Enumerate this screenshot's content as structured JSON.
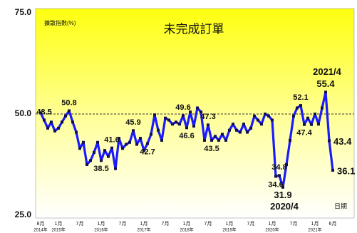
{
  "chart_data": {
    "type": "line",
    "title": "未完成訂單",
    "y_axis_label": "擴散指數(%)",
    "x_axis_label": "日期",
    "categories": [
      "8月",
      null,
      null,
      null,
      null,
      "1月",
      null,
      null,
      null,
      null,
      null,
      "7月",
      null,
      null,
      null,
      null,
      null,
      "1月",
      null,
      null,
      null,
      null,
      null,
      "7月",
      null,
      null,
      null,
      null,
      null,
      "1月",
      null,
      null,
      null,
      null,
      null,
      "7月",
      null,
      null,
      null,
      null,
      null,
      "1月",
      null,
      null,
      null,
      null,
      null,
      "7月",
      null,
      null,
      null,
      null,
      null,
      "1月",
      null,
      null,
      null,
      null,
      null,
      "7月",
      null,
      null,
      null,
      null,
      null,
      "1月",
      null,
      null,
      null,
      null,
      null,
      "7月",
      null,
      null,
      null,
      null,
      null,
      "1月",
      null,
      null,
      null,
      null,
      "6月"
    ],
    "years": [
      "2014年",
      null,
      null,
      null,
      null,
      "2015年",
      null,
      null,
      null,
      null,
      null,
      null,
      null,
      null,
      null,
      null,
      null,
      "2016年",
      null,
      null,
      null,
      null,
      null,
      null,
      null,
      null,
      null,
      null,
      null,
      "2017年",
      null,
      null,
      null,
      null,
      null,
      null,
      null,
      null,
      null,
      null,
      null,
      "2018年",
      null,
      null,
      null,
      null,
      null,
      null,
      null,
      null,
      null,
      null,
      null,
      "2019年",
      null,
      null,
      null,
      null,
      null,
      null,
      null,
      null,
      null,
      null,
      null,
      "2020年",
      null,
      null,
      null,
      null,
      null,
      null,
      null,
      null,
      null,
      null,
      null,
      "2021年",
      null,
      null,
      null,
      null,
      null
    ],
    "series": [
      {
        "name": "未完成訂單",
        "color": "#1a1aff",
        "values": [
          50.3,
          48.5,
          46.5,
          48.0,
          45.8,
          46.5,
          48.0,
          49.5,
          50.8,
          48.0,
          45.5,
          41.5,
          43.0,
          37.5,
          38.5,
          40.5,
          43.0,
          38.5,
          41.0,
          39.5,
          41.6,
          36.5,
          44.0,
          41.5,
          42.5,
          43.0,
          45.9,
          42.5,
          44.0,
          41.0,
          42.7,
          45.0,
          49.8,
          46.0,
          43.5,
          49.0,
          48.5,
          47.5,
          48.0,
          47.5,
          49.6,
          46.6,
          50.5,
          47.0,
          51.5,
          50.5,
          43.5,
          47.3,
          43.5,
          44.5,
          43.5,
          45.0,
          43.5,
          46.0,
          47.5,
          46.0,
          45.5,
          47.5,
          45.5,
          46.5,
          49.5,
          48.5,
          47.5,
          50.0,
          49.5,
          48.5,
          34.6,
          34.8,
          31.9,
          37.5,
          43.5,
          49.5,
          51.5,
          52.1,
          47.4,
          49.0,
          47.4,
          50.0,
          47.5,
          51.5,
          55.4,
          43.4,
          36.1
        ],
        "value_labels": [
          null,
          "48.5",
          null,
          null,
          null,
          null,
          null,
          null,
          "50.8",
          null,
          null,
          null,
          null,
          null,
          null,
          null,
          null,
          "38.5",
          null,
          null,
          "41.6",
          null,
          null,
          null,
          null,
          null,
          "45.9",
          null,
          null,
          null,
          "42.7",
          null,
          null,
          null,
          null,
          null,
          null,
          null,
          null,
          null,
          "49.6",
          "46.6",
          null,
          null,
          null,
          null,
          null,
          "47.3",
          "43.5",
          null,
          null,
          null,
          null,
          null,
          null,
          null,
          null,
          null,
          null,
          null,
          null,
          null,
          null,
          null,
          null,
          null,
          "34.6",
          "34.8",
          "31.9",
          null,
          null,
          null,
          null,
          "52.1",
          "47.4",
          null,
          null,
          null,
          null,
          null,
          "55.4",
          "43.4",
          "36.1"
        ],
        "point_notes": [
          null,
          null,
          null,
          null,
          null,
          null,
          null,
          null,
          null,
          null,
          null,
          null,
          null,
          null,
          null,
          null,
          null,
          null,
          null,
          null,
          null,
          null,
          null,
          null,
          null,
          null,
          null,
          null,
          null,
          null,
          null,
          null,
          null,
          null,
          null,
          null,
          null,
          null,
          null,
          null,
          null,
          null,
          null,
          null,
          null,
          null,
          null,
          null,
          null,
          null,
          null,
          null,
          null,
          null,
          null,
          null,
          null,
          null,
          null,
          null,
          null,
          null,
          null,
          null,
          null,
          null,
          null,
          null,
          "2020/4",
          null,
          null,
          null,
          null,
          null,
          null,
          null,
          null,
          null,
          null,
          null,
          "2021/4",
          null,
          null
        ]
      }
    ],
    "ylim": [
      25,
      75
    ],
    "yticks": [
      {
        "value": 25,
        "label": "25.0"
      },
      {
        "value": 50,
        "label": "50.0"
      },
      {
        "value": 75,
        "label": "75.0"
      }
    ],
    "grid": true
  }
}
